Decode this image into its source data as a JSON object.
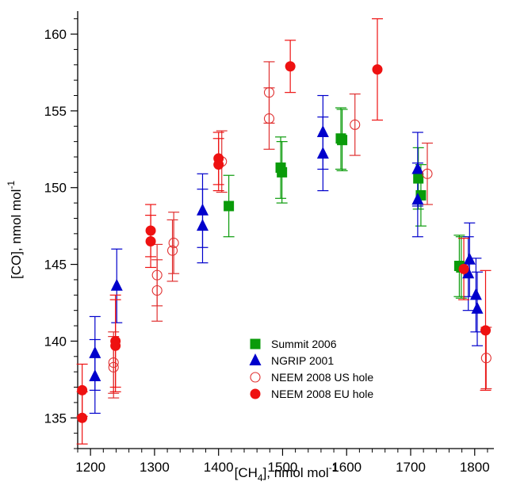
{
  "chart_data": {
    "type": "scatter",
    "xlabel": {
      "main": "[CH",
      "sub": "4",
      "rest": "], nmol mol",
      "sup": "-1"
    },
    "ylabel": {
      "main": "[CO], nmol mol",
      "sup": "-1"
    },
    "xlim": [
      1180,
      1830
    ],
    "ylim": [
      133,
      161.5
    ],
    "x_ticks": [
      1200,
      1300,
      1400,
      1500,
      1600,
      1700,
      1800
    ],
    "y_ticks": [
      135,
      140,
      145,
      150,
      155,
      160
    ],
    "legend_position": "lower-center",
    "series": [
      {
        "name": "Summit 2006",
        "marker": "square",
        "filled": true,
        "color": "#0a9b0a",
        "points": [
          {
            "x": 1416,
            "y": 148.8,
            "err": 2.0
          },
          {
            "x": 1497,
            "y": 151.3,
            "err": 2.0
          },
          {
            "x": 1499,
            "y": 151.0,
            "err": 2.0
          },
          {
            "x": 1591,
            "y": 153.2,
            "err": 2.0
          },
          {
            "x": 1593,
            "y": 153.1,
            "err": 2.0
          },
          {
            "x": 1712,
            "y": 150.6,
            "err": 2.0
          },
          {
            "x": 1716,
            "y": 149.5,
            "err": 2.0
          },
          {
            "x": 1776,
            "y": 144.9,
            "err": 2.0
          },
          {
            "x": 1779,
            "y": 144.8,
            "err": 2.0
          }
        ]
      },
      {
        "name": "NGRIP 2001",
        "marker": "triangle",
        "filled": true,
        "color": "#0000cc",
        "points": [
          {
            "x": 1207,
            "y": 139.2,
            "err": 2.4
          },
          {
            "x": 1207,
            "y": 137.7,
            "err": 2.4
          },
          {
            "x": 1241,
            "y": 143.6,
            "err": 2.4
          },
          {
            "x": 1375,
            "y": 148.5,
            "err": 2.4
          },
          {
            "x": 1375,
            "y": 147.5,
            "err": 2.4
          },
          {
            "x": 1563,
            "y": 153.6,
            "err": 2.4
          },
          {
            "x": 1563,
            "y": 152.2,
            "err": 2.4
          },
          {
            "x": 1711,
            "y": 151.2,
            "err": 2.4
          },
          {
            "x": 1711,
            "y": 149.2,
            "err": 2.4
          },
          {
            "x": 1792,
            "y": 145.3,
            "err": 2.4
          },
          {
            "x": 1790,
            "y": 144.4,
            "err": 2.4
          },
          {
            "x": 1802,
            "y": 143.0,
            "err": 2.4
          },
          {
            "x": 1804,
            "y": 142.1,
            "err": 2.4
          }
        ]
      },
      {
        "name": "NEEM 2008 US hole",
        "marker": "circle",
        "filled": false,
        "color": "#e03030",
        "points": [
          {
            "x": 1236,
            "y": 138.6,
            "err": 2.0
          },
          {
            "x": 1236,
            "y": 138.3,
            "err": 2.0
          },
          {
            "x": 1304,
            "y": 144.3,
            "err": 2.0
          },
          {
            "x": 1304,
            "y": 143.3,
            "err": 2.0
          },
          {
            "x": 1330,
            "y": 146.4,
            "err": 2.0
          },
          {
            "x": 1328,
            "y": 145.9,
            "err": 2.0
          },
          {
            "x": 1405,
            "y": 151.7,
            "err": 2.0
          },
          {
            "x": 1479,
            "y": 156.2,
            "err": 2.0
          },
          {
            "x": 1479,
            "y": 154.5,
            "err": 2.0
          },
          {
            "x": 1613,
            "y": 154.1,
            "err": 2.0
          },
          {
            "x": 1726,
            "y": 150.9,
            "err": 2.0
          },
          {
            "x": 1818,
            "y": 138.9,
            "err": 2.0
          }
        ]
      },
      {
        "name": "NEEM 2008 EU hole",
        "marker": "circle",
        "filled": true,
        "color": "#ee1111",
        "points": [
          {
            "x": 1187,
            "y": 136.8,
            "err": 1.7
          },
          {
            "x": 1187,
            "y": 135.0,
            "err": 1.7
          },
          {
            "x": 1239,
            "y": 140.0,
            "err": 3.0
          },
          {
            "x": 1239,
            "y": 139.7,
            "err": 3.0
          },
          {
            "x": 1294,
            "y": 147.2,
            "err": 1.7
          },
          {
            "x": 1294,
            "y": 146.5,
            "err": 1.7
          },
          {
            "x": 1400,
            "y": 151.9,
            "err": 1.7
          },
          {
            "x": 1400,
            "y": 151.5,
            "err": 1.7
          },
          {
            "x": 1512,
            "y": 157.9,
            "err": 1.7
          },
          {
            "x": 1648,
            "y": 157.7,
            "err": 3.3
          },
          {
            "x": 1783,
            "y": 144.7,
            "err": 2.0
          },
          {
            "x": 1817,
            "y": 140.7,
            "err": 3.9
          }
        ]
      }
    ]
  }
}
